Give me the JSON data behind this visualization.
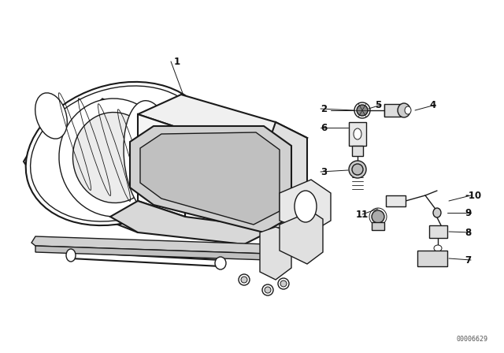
{
  "bg_color": "#ffffff",
  "line_color": "#1a1a1a",
  "label_color": "#111111",
  "fig_width": 6.4,
  "fig_height": 4.48,
  "dpi": 100,
  "watermark": "00006629"
}
